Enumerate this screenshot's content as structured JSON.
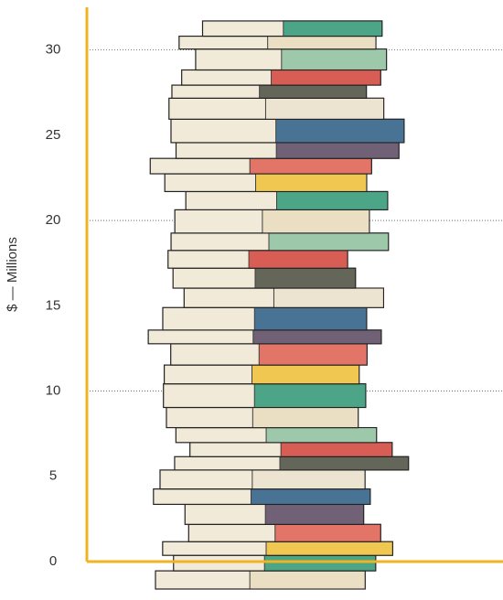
{
  "chart_data": {
    "type": "pictorial-bar",
    "y_label": "$ — Millions",
    "value": 31.7,
    "ylim": [
      0,
      32.5
    ],
    "yticks": [
      0,
      5,
      10,
      15,
      20,
      25,
      30
    ],
    "grid_lines": [
      10,
      20,
      30
    ],
    "axis_color": "#f0b323"
  }
}
